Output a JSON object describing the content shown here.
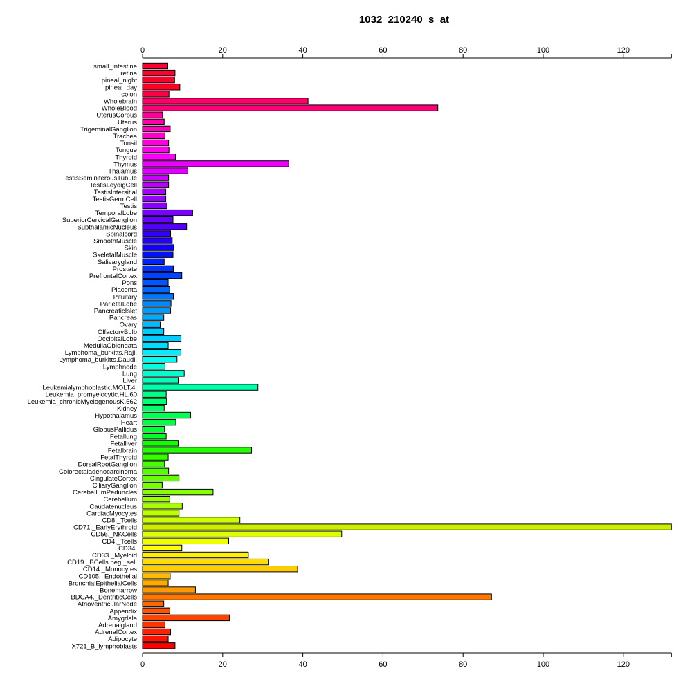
{
  "chart_data": {
    "type": "bar",
    "orientation": "horizontal",
    "title": "1032_210240_s_at",
    "xlabel": "",
    "ylabel": "",
    "xlim": [
      0,
      132
    ],
    "x_ticks": [
      0,
      20,
      40,
      60,
      80,
      100,
      120
    ],
    "grid": false,
    "legend": "none",
    "categories": [
      "small_intestine",
      "retina",
      "pineal_night",
      "pineal_day",
      "colon",
      "Wholebrain",
      "WholeBlood",
      "UterusCorpus",
      "Uterus",
      "TrigeminalGanglion",
      "Trachea",
      "Tonsil",
      "Tongue",
      "Thyroid",
      "Thymus",
      "Thalamus",
      "TestisSeminiferousTubule",
      "TestisLeydigCell",
      "TestisIntersitial",
      "TestisGermCell",
      "Testis",
      "TemporalLobe",
      "SuperiorCervicalGanglion",
      "SubthalamicNucleus",
      "Spinalcord",
      "SmoothMuscle",
      "Skin",
      "SkeletalMuscle",
      "Salivarygland",
      "Prostate",
      "PrefrontalCortex",
      "Pons",
      "Placenta",
      "Pituitary",
      "ParietalLobe",
      "PancreaticIslet",
      "Pancreas",
      "Ovary",
      "OlfactoryBulb",
      "OccipitalLobe",
      "MedullaOblongata",
      "Lymphoma_burkitts.Raji.",
      "Lymphoma_burkitts.Daudi.",
      "Lymphnode",
      "Lung",
      "Liver",
      "Leukemialymphoblastic.MOLT.4.",
      "Leukemia_promyelocytic.HL.60",
      "Leukemia_chronicMyelogenousK.562",
      "Kidney",
      "Hypothalamus",
      "Heart",
      "GlobusPallidus",
      "Fetallung",
      "Fetalliver",
      "Fetalbrain",
      "FetalThyroid",
      "DorsalRootGanglion",
      "Colorectaladenocarcinoma",
      "CingulateCortex",
      "CiliaryGanglion",
      "CerebellumPeduncles",
      "Cerebellum",
      "Caudatenucleus",
      "CardiacMyocytes",
      "CD8._Tcells",
      "CD71._EarlyErythroid",
      "CD56._NKCells",
      "CD4._Tcells",
      "CD34.",
      "CD33._Myeloid",
      "CD19._BCells.neg._sel.",
      "CD14._Monocytes",
      "CD105._Endothelial",
      "BronchialEpithelialCells",
      "Bonemarrow",
      "BDCA4._DentriticCells",
      "AtrioventricularNode",
      "Appendix",
      "Amygdala",
      "Adrenalgland",
      "AdrenalCortex",
      "Adipocyte",
      "X721_B_lymphoblasts"
    ],
    "values": [
      6.3,
      8.1,
      8.0,
      9.3,
      6.6,
      41.3,
      73.7,
      5.0,
      5.4,
      6.9,
      5.6,
      6.5,
      6.6,
      8.2,
      36.5,
      11.3,
      6.5,
      6.5,
      5.8,
      5.8,
      6.1,
      12.5,
      7.6,
      11.0,
      7.0,
      7.4,
      7.8,
      7.6,
      5.4,
      7.7,
      9.8,
      6.4,
      6.8,
      7.7,
      7.1,
      7.0,
      5.3,
      4.4,
      5.3,
      9.6,
      6.4,
      9.6,
      8.6,
      5.6,
      10.4,
      8.9,
      28.8,
      5.9,
      6.0,
      5.4,
      12.0,
      8.3,
      5.5,
      5.9,
      8.9,
      27.2,
      6.4,
      5.5,
      6.5,
      9.1,
      4.9,
      17.6,
      6.8,
      9.9,
      9.1,
      24.3,
      132.0,
      49.7,
      21.5,
      9.8,
      26.4,
      31.5,
      38.7,
      6.9,
      6.4,
      13.2,
      87.1,
      5.3,
      6.8,
      21.7,
      5.6,
      7.0,
      6.4,
      8.1
    ],
    "bar_colors": [
      "#ff0033",
      "#ff0030",
      "#ff002c",
      "#ff0029",
      "#ff0045",
      "#ff0066",
      "#ff0077",
      "#ff0099",
      "#ff00aa",
      "#ff00bb",
      "#ff00cc",
      "#ff00dd",
      "#ff00ee",
      "#ff00ff",
      "#ee00ff",
      "#dd00ff",
      "#cc00ff",
      "#bb00ff",
      "#aa00ff",
      "#9900ff",
      "#8800ff",
      "#7700ff",
      "#6600ff",
      "#5500ff",
      "#3300ff",
      "#2200ff",
      "#1100ff",
      "#0011ff",
      "#0022ff",
      "#0033ff",
      "#0044ff",
      "#0055ff",
      "#0066ff",
      "#0077ff",
      "#0088ff",
      "#0099ff",
      "#00aaff",
      "#00bbff",
      "#00ccff",
      "#00ccff",
      "#00ddff",
      "#00eeff",
      "#00ffee",
      "#00ffdd",
      "#00ffcc",
      "#00ffbb",
      "#00ffaa",
      "#00ff88",
      "#00ff77",
      "#00ff66",
      "#00ff55",
      "#00ff44",
      "#00ff33",
      "#00ff22",
      "#11ff00",
      "#22ff00",
      "#33ff00",
      "#44ff00",
      "#55ff00",
      "#66ff00",
      "#77ff00",
      "#88ff00",
      "#99ff00",
      "#aaff00",
      "#bbff00",
      "#ccff00",
      "#ccee00",
      "#ddff00",
      "#eeff00",
      "#ffff00",
      "#ffee00",
      "#ffdd00",
      "#ffcc00",
      "#ffbb00",
      "#ffaa00",
      "#ff9900",
      "#ff7700",
      "#ff6600",
      "#ff5500",
      "#ff4400",
      "#ff3300",
      "#ff2200",
      "#ff1100",
      "#ff0000"
    ]
  }
}
